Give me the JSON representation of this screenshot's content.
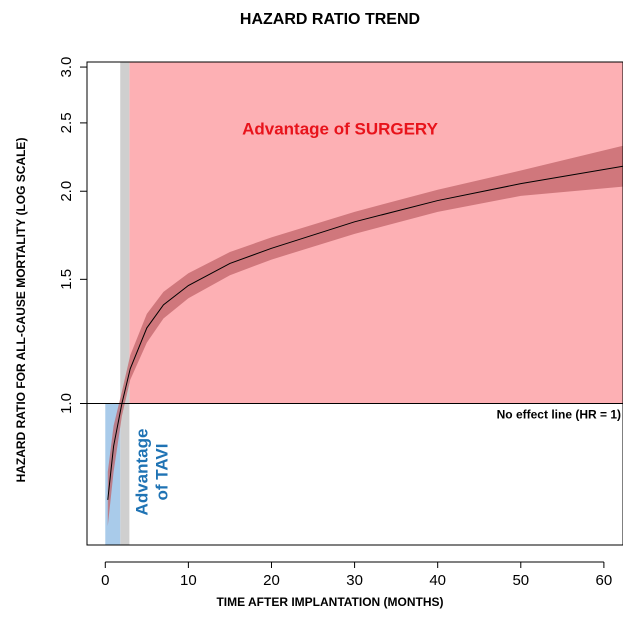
{
  "chart_data": {
    "type": "line",
    "title": "HAZARD RATIO TREND",
    "xlabel": "TIME AFTER IMPLANTATION (MONTHS)",
    "ylabel": "HAZARD RATIO FOR ALL-CAUSE MORTALITY (LOG SCALE)",
    "x": [
      0.3,
      1,
      2,
      3,
      5,
      7,
      10,
      15,
      20,
      30,
      40,
      50,
      62.3
    ],
    "values": [
      0.73,
      0.87,
      1.0,
      1.12,
      1.28,
      1.38,
      1.47,
      1.58,
      1.66,
      1.81,
      1.94,
      2.05,
      2.17
    ],
    "lower": [
      0.67,
      0.8,
      0.96,
      1.08,
      1.22,
      1.32,
      1.41,
      1.52,
      1.6,
      1.74,
      1.87,
      1.97,
      2.03
    ],
    "upper": [
      0.8,
      0.93,
      1.04,
      1.17,
      1.34,
      1.44,
      1.53,
      1.64,
      1.72,
      1.87,
      2.01,
      2.14,
      2.32
    ],
    "color": "#000000",
    "band_color": "#c0646a",
    "xlim": [
      -2.2,
      62.3
    ],
    "ylim": [
      0.63,
      3.05
    ],
    "ylog": true,
    "xticks": [
      0,
      10,
      20,
      30,
      40,
      50,
      60
    ],
    "yticks": [
      {
        "value": 1,
        "label": "1.0"
      },
      1.5,
      {
        "value": 2,
        "label": "2.0"
      },
      2.5,
      {
        "value": 3,
        "label": "3.0"
      }
    ],
    "reference_line": {
      "value": 1,
      "label": "No effect line (HR = 1)"
    },
    "regions": [
      {
        "label": "Advantage of SURGERY",
        "color": "#fdb0b4",
        "text_color": "#e8131b",
        "xlim": [
          2.9,
          62.3
        ],
        "ylim": [
          1,
          3.05
        ]
      },
      {
        "color": "#cfcfcf",
        "xlim": [
          1.8,
          2.9
        ],
        "ylim": [
          0.63,
          3.05
        ]
      },
      {
        "label_lines": [
          "Advantage",
          "of TAVI"
        ],
        "color": "#a9cbea",
        "text_color": "#1f73b4",
        "xlim": [
          0,
          1.8
        ],
        "ylim": [
          0.63,
          1
        ]
      }
    ]
  }
}
